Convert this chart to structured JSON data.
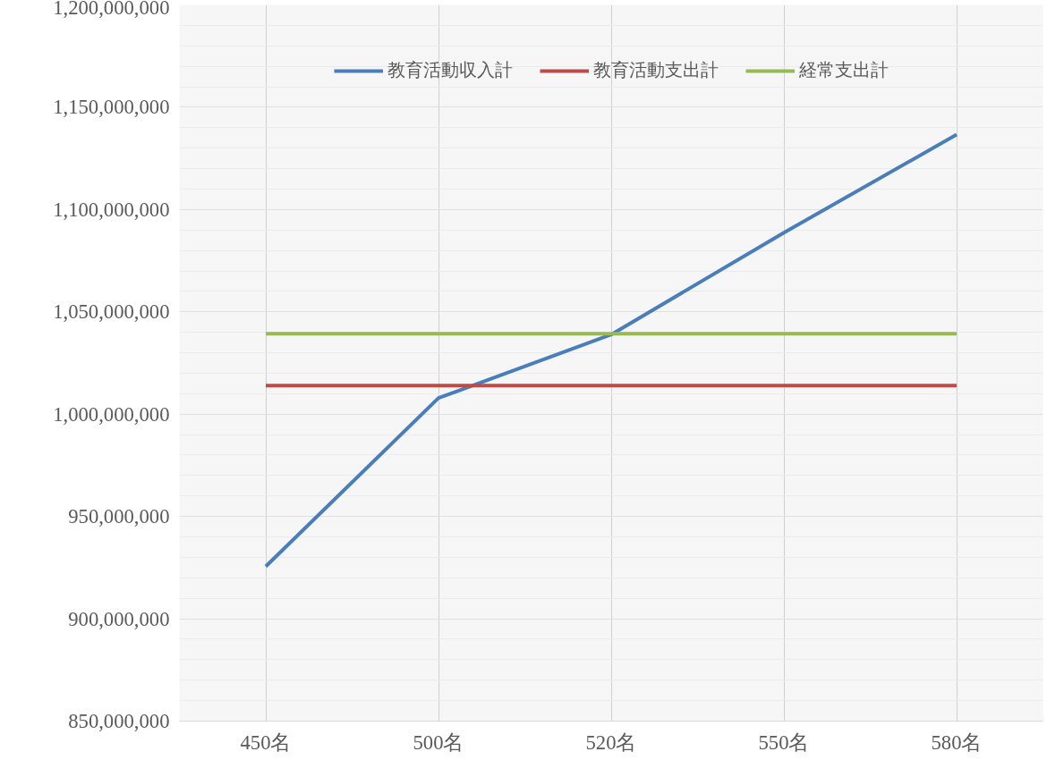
{
  "chart_data": {
    "type": "line",
    "categories": [
      "450名",
      "500名",
      "520名",
      "550名",
      "580名"
    ],
    "series": [
      {
        "name": "教育活動収入計",
        "color": "#4a7ebb",
        "values": [
          925600000,
          1007900000,
          1038900000,
          1088700000,
          1136600000
        ]
      },
      {
        "name": "教育活動支出計",
        "color": "#be4b48",
        "values": [
          1014000000,
          1014000000,
          1014000000,
          1014000000,
          1014000000
        ]
      },
      {
        "name": "経常支出計",
        "color": "#98b954",
        "values": [
          1039300000,
          1039300000,
          1039300000,
          1039300000,
          1039300000
        ]
      }
    ],
    "ylim": [
      850000000,
      1200000000
    ],
    "yticks": [
      {
        "value": 850000000,
        "label": "850,000,000"
      },
      {
        "value": 900000000,
        "label": "900,000,000"
      },
      {
        "value": 950000000,
        "label": "950,000,000"
      },
      {
        "value": 1000000000,
        "label": "1,000,000,000"
      },
      {
        "value": 1050000000,
        "label": "1,050,000,000"
      },
      {
        "value": 1100000000,
        "label": "1,100,000,000"
      },
      {
        "value": 1150000000,
        "label": "1,150,000,000"
      },
      {
        "value": 1200000000,
        "label": "1,200,000,000"
      }
    ],
    "grid": true,
    "legend": "top",
    "marker": "none",
    "line_style": "solid"
  }
}
